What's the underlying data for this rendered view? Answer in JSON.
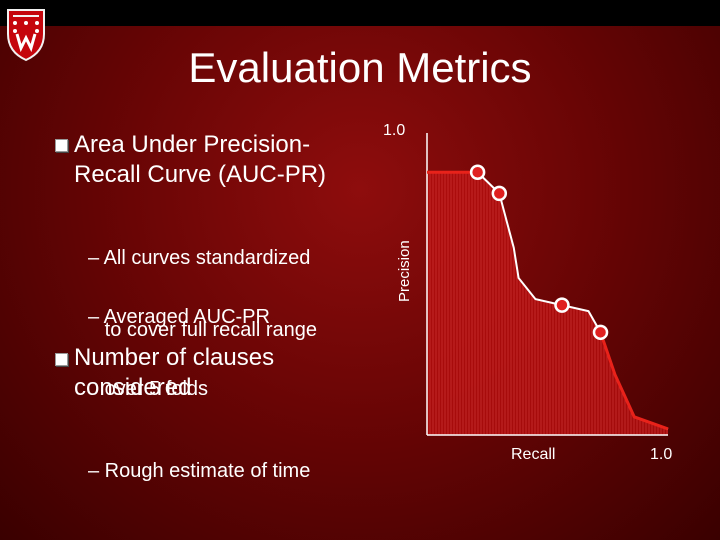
{
  "slide": {
    "title": "Evaluation Metrics"
  },
  "bullets": [
    {
      "text_lines": [
        "Area Under Precision-",
        "Recall Curve (AUC-PR)"
      ],
      "subs": [
        [
          "– All curves standardized",
          "   to cover full recall range"
        ],
        [
          "– Averaged AUC-PR",
          "   over 5 folds"
        ]
      ]
    },
    {
      "text_lines": [
        "Number of clauses",
        "considered"
      ],
      "subs": [
        [
          "– Rough estimate of time"
        ]
      ]
    }
  ],
  "chart_data": {
    "type": "area",
    "xlabel": "Recall",
    "ylabel": "Precision",
    "x_max_label": "1.0",
    "y_max_label": "1.0",
    "xlim": [
      0,
      1
    ],
    "ylim": [
      0,
      1
    ],
    "segments": [
      {
        "kind": "extrapolated",
        "points": [
          [
            0.0,
            0.87
          ],
          [
            0.21,
            0.87
          ]
        ]
      },
      {
        "kind": "curve",
        "points": [
          [
            0.21,
            0.87
          ],
          [
            0.3,
            0.8
          ],
          [
            0.36,
            0.62
          ],
          [
            0.38,
            0.52
          ],
          [
            0.45,
            0.45
          ],
          [
            0.56,
            0.43
          ],
          [
            0.67,
            0.41
          ],
          [
            0.72,
            0.34
          ],
          [
            0.78,
            0.2
          ],
          [
            0.86,
            0.06
          ],
          [
            1.0,
            0.02
          ]
        ]
      }
    ],
    "markers": [
      [
        0.21,
        0.87
      ],
      [
        0.3,
        0.8
      ],
      [
        0.56,
        0.43
      ],
      [
        0.72,
        0.34
      ]
    ],
    "colors": {
      "curve": "#ffffff",
      "extrapolated": "#e8221a",
      "marker_fill": "#e02020",
      "area_fill": "#b30d0d",
      "area_lines": "#d84040"
    }
  }
}
